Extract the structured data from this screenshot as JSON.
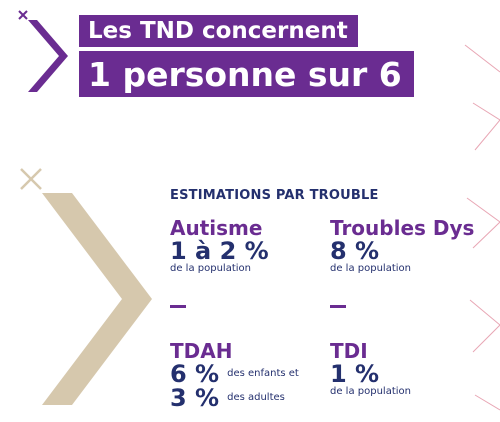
{
  "header": {
    "line1": "Les TND concernent",
    "line2": "1 personne sur 6"
  },
  "section": {
    "title": "ESTIMATIONS PAR TROUBLE"
  },
  "items": [
    {
      "name": "Autisme",
      "value": "1 à 2 %",
      "note": "de la population"
    },
    {
      "name": "Troubles Dys",
      "value": "8 %",
      "note": "de la population"
    },
    {
      "name": "TDAH",
      "value1": "6 %",
      "note1": "des enfants et",
      "value2": "3 %",
      "note2": "des adultes"
    },
    {
      "name": "TDI",
      "value": "1 %",
      "note": "de la population"
    }
  ],
  "colors": {
    "purple": "#6a2c91",
    "navy": "#24306e",
    "beige": "#d6c8ad",
    "pink": "#e8a6b4"
  },
  "icons": {
    "top_cross": "x-mark-icon",
    "top_chevron": "chevron-right-icon",
    "big_cross": "x-mark-icon",
    "big_chevron": "chevron-right-icon"
  }
}
